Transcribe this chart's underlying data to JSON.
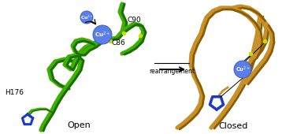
{
  "background_color": "#ffffff",
  "left_label": "Open",
  "right_label": "Closed",
  "arrow_label": "rearrangement",
  "cu_color": "#5b7fe8",
  "cu_outline": "#3a5dc0",
  "c86_label": "C86",
  "c90_label": "C90",
  "h176_label": "H176",
  "green_color": "#3db000",
  "dark_green": "#1a6e00",
  "gold_color": "#c8902a",
  "dark_gold": "#8a5c00",
  "yellow_sulfur": "#ccdd00",
  "blue_imidazole": "#1a3acc",
  "figsize": [
    3.77,
    1.7
  ],
  "dpi": 100
}
